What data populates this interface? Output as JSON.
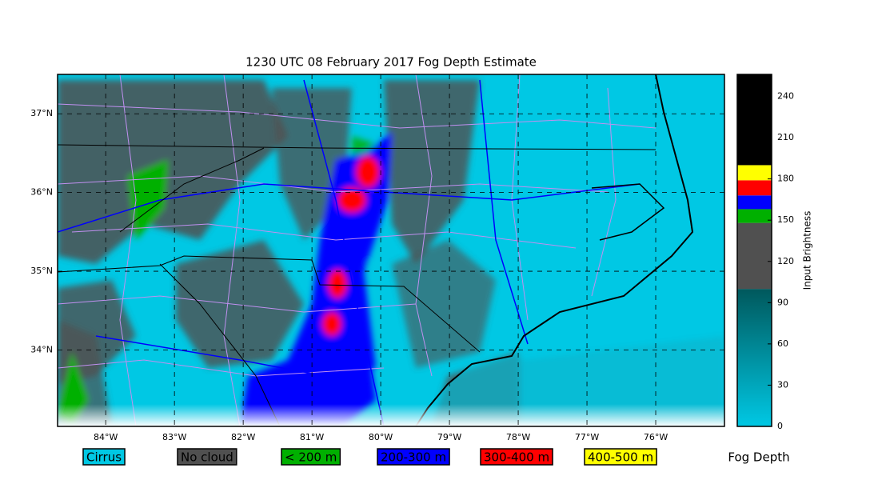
{
  "title": "1230 UTC 08 February 2017 Fog Depth Estimate",
  "map": {
    "lonlim": [
      -84.7,
      -75.0
    ],
    "latlim": [
      33.03,
      37.5
    ],
    "lat_ticks": [
      {
        "value": 37,
        "label": "37°N"
      },
      {
        "value": 36,
        "label": "36°N"
      },
      {
        "value": 35,
        "label": "35°N"
      },
      {
        "value": 34,
        "label": "34°N"
      }
    ],
    "lon_ticks": [
      {
        "value": -84,
        "label": "84°W"
      },
      {
        "value": -83,
        "label": "83°W"
      },
      {
        "value": -82,
        "label": "82°W"
      },
      {
        "value": -81,
        "label": "81°W"
      },
      {
        "value": -80,
        "label": "80°W"
      },
      {
        "value": -79,
        "label": "79°W"
      },
      {
        "value": -78,
        "label": "78°W"
      },
      {
        "value": -77,
        "label": "77°W"
      },
      {
        "value": -76,
        "label": "76°W"
      }
    ],
    "grid": true
  },
  "colorbar": {
    "label": "Input Brightness",
    "lim": [
      0,
      256
    ],
    "ticks": [
      0,
      30,
      60,
      90,
      120,
      150,
      180,
      210,
      240
    ],
    "segments": [
      {
        "range": [
          0,
          100
        ],
        "colors": [
          "#00c8e4",
          "#00585c"
        ]
      },
      {
        "range": [
          100,
          148
        ],
        "colors": [
          "#505050"
        ]
      },
      {
        "range": [
          148,
          158
        ],
        "colors": [
          "#00b000"
        ]
      },
      {
        "range": [
          158,
          168
        ],
        "colors": [
          "#0000ff"
        ]
      },
      {
        "range": [
          168,
          179
        ],
        "colors": [
          "#ff0000"
        ]
      },
      {
        "range": [
          179,
          190
        ],
        "colors": [
          "#ffff00"
        ]
      },
      {
        "range": [
          190,
          256
        ],
        "colors": [
          "#000000"
        ]
      }
    ]
  },
  "legend": {
    "title": "Fog Depth",
    "items": [
      {
        "label": "Cirrus",
        "color": "#00c8e4",
        "text_color": "#000000"
      },
      {
        "label": "No cloud",
        "color": "#505050",
        "text_color": "#ffffff"
      },
      {
        "label": "< 200 m",
        "color": "#00b000",
        "text_color": "#000000"
      },
      {
        "label": "200-300 m",
        "color": "#0000ff",
        "text_color": "#ffffff"
      },
      {
        "label": "300-400 m",
        "color": "#ff0000",
        "text_color": "#ffffff"
      },
      {
        "label": "400-500 m",
        "color": "#ffff00",
        "text_color": "#000000"
      }
    ]
  }
}
